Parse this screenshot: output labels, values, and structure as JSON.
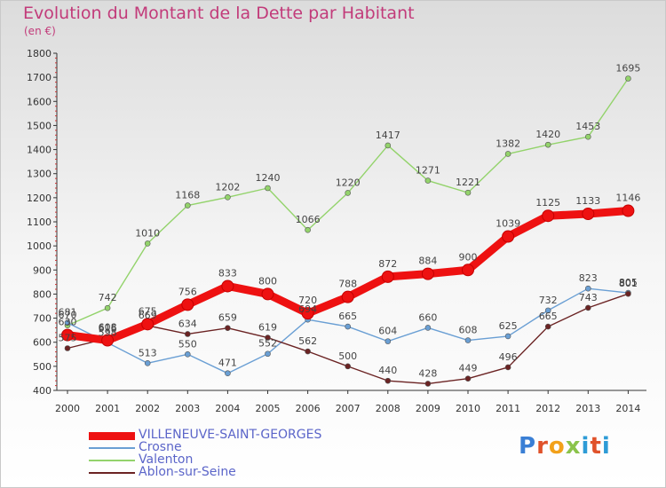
{
  "header": {
    "title": "Evolution du Montant de la Dette par Habitant",
    "unit": "(en €)"
  },
  "logo": {
    "text": "Proxiti",
    "colors": [
      "#3a7fd5",
      "#e0522a",
      "#f2a11a",
      "#8bc34a",
      "#2e9bd6",
      "#e0522a",
      "#2e9bd6"
    ]
  },
  "chart_data": {
    "type": "line",
    "title": "Evolution du Montant de la Dette par Habitant",
    "ylabel": "(en €)",
    "xlabel": "",
    "ylim": [
      400,
      1800
    ],
    "yticks": [
      400,
      500,
      600,
      700,
      800,
      900,
      1000,
      1100,
      1200,
      1300,
      1400,
      1500,
      1600,
      1700,
      1800
    ],
    "grid": false,
    "legend": "bottom-left",
    "x": [
      "2000",
      "2001",
      "2002",
      "2003",
      "2004",
      "2005",
      "2006",
      "2007",
      "2008",
      "2009",
      "2010",
      "2011",
      "2012",
      "2013",
      "2014"
    ],
    "series": [
      {
        "name": "VILLENEUVE-SAINT-GEORGES",
        "color": "#ee1111",
        "values": [
          630,
          608,
          675,
          756,
          833,
          800,
          720,
          788,
          872,
          884,
          900,
          1039,
          1125,
          1133,
          1146
        ]
      },
      {
        "name": "Crosne",
        "color": "#6a9fd4",
        "values": [
          681,
          598,
          513,
          550,
          471,
          552,
          694,
          665,
          604,
          660,
          608,
          625,
          732,
          823,
          805
        ]
      },
      {
        "name": "Valenton",
        "color": "#93d36b",
        "values": [
          670,
          742,
          1010,
          1168,
          1202,
          1240,
          1066,
          1220,
          1417,
          1271,
          1221,
          1382,
          1420,
          1453,
          1695
        ]
      },
      {
        "name": "Ablon-sur-Seine",
        "color": "#6b2323",
        "values": [
          575,
          616,
          669,
          634,
          659,
          619,
          562,
          500,
          440,
          428,
          449,
          496,
          665,
          743,
          801
        ]
      }
    ]
  }
}
